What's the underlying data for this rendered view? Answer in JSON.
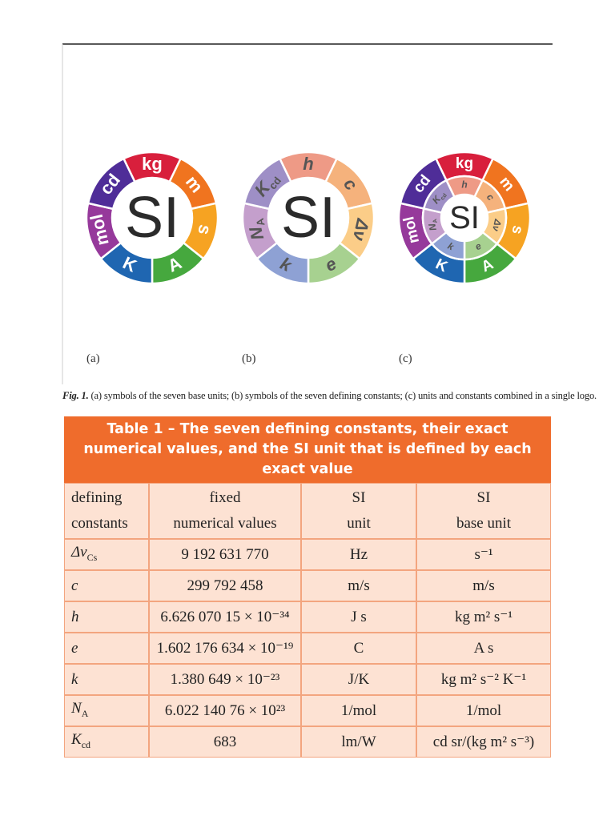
{
  "figure": {
    "center_text": "SI",
    "panel_labels": [
      "(a)",
      "(b)",
      "(c)"
    ],
    "units": [
      "kg",
      "m",
      "s",
      "A",
      "K",
      "mol",
      "cd"
    ],
    "constants": [
      {
        "symbol": "h"
      },
      {
        "symbol": "c"
      },
      {
        "symbol": "Δν"
      },
      {
        "symbol": "e"
      },
      {
        "symbol": "k"
      },
      {
        "symbol": "N",
        "sub": "A"
      },
      {
        "symbol": "K",
        "sub": "cd"
      }
    ],
    "caption": {
      "label": "Fig. 1.",
      "text": "(a) symbols of the seven base units; (b) symbols of the seven defining constants; (c) units and constants combined in a single logo."
    }
  },
  "table": {
    "title": "Table 1 – The seven defining constants, their exact numerical values, and the SI unit that is defined by each exact value",
    "header": [
      [
        "defining",
        "constants"
      ],
      [
        "fixed",
        "numerical values"
      ],
      [
        "SI",
        "unit"
      ],
      [
        "SI",
        "base unit"
      ]
    ],
    "rows": [
      {
        "symbol": "Δν",
        "symbol_sub": "Cs",
        "value": "9 192 631 770",
        "unit": "Hz",
        "base_unit": "s⁻¹"
      },
      {
        "symbol": "c",
        "value": "299 792 458",
        "unit": "m/s",
        "base_unit": "m/s"
      },
      {
        "symbol": "h",
        "value": "6.626 070 15 × 10⁻³⁴",
        "unit": "J s",
        "base_unit": "kg m² s⁻¹"
      },
      {
        "symbol": "e",
        "value": "1.602 176 634 × 10⁻¹⁹",
        "unit": "C",
        "base_unit": "A s"
      },
      {
        "symbol": "k",
        "value": "1.380 649 × 10⁻²³",
        "unit": "J/K",
        "base_unit": "kg m² s⁻² K⁻¹"
      },
      {
        "symbol": "N",
        "symbol_sub": "A",
        "value": "6.022 140 76 × 10²³",
        "unit": "1/mol",
        "base_unit": "1/mol"
      },
      {
        "symbol": "K",
        "symbol_sub": "cd",
        "value": "683",
        "unit": "lm/W",
        "base_unit": "cd sr/(kg m² s⁻³)"
      }
    ]
  }
}
